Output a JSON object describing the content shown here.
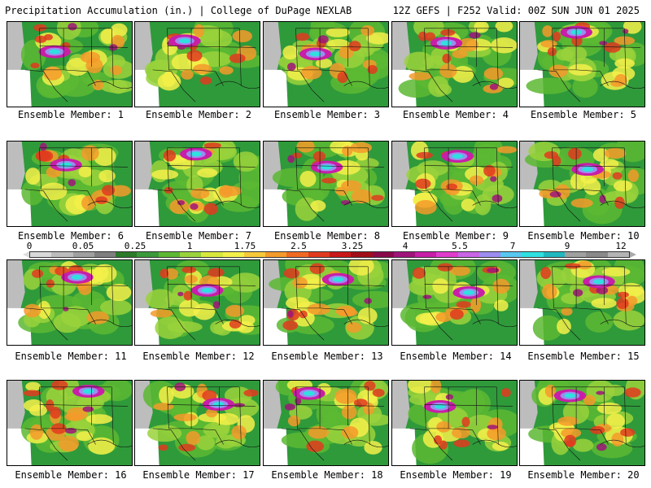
{
  "header": {
    "left_title": "Precipitation Accumulation (in.) | College of DuPage NEXLAB",
    "right_title": "12Z GEFS | F252 Valid: 00Z SUN JUN 01 2025"
  },
  "panels": [
    {
      "label": "Ensemble Member: 1"
    },
    {
      "label": "Ensemble Member: 2"
    },
    {
      "label": "Ensemble Member: 3"
    },
    {
      "label": "Ensemble Member: 4"
    },
    {
      "label": "Ensemble Member: 5"
    },
    {
      "label": "Ensemble Member: 6"
    },
    {
      "label": "Ensemble Member: 7"
    },
    {
      "label": "Ensemble Member: 8"
    },
    {
      "label": "Ensemble Member: 9"
    },
    {
      "label": "Ensemble Member: 10"
    },
    {
      "label": "Ensemble Member: 11"
    },
    {
      "label": "Ensemble Member: 12"
    },
    {
      "label": "Ensemble Member: 13"
    },
    {
      "label": "Ensemble Member: 14"
    },
    {
      "label": "Ensemble Member: 15"
    },
    {
      "label": "Ensemble Member: 16"
    },
    {
      "label": "Ensemble Member: 17"
    },
    {
      "label": "Ensemble Member: 18"
    },
    {
      "label": "Ensemble Member: 19"
    },
    {
      "label": "Ensemble Member: 20"
    }
  ],
  "colorbar": {
    "ticks": [
      "0",
      "0.05",
      "0.25",
      "1",
      "1.75",
      "2.5",
      "3.25",
      "4",
      "5.5",
      "7",
      "9",
      "12"
    ],
    "colors": [
      "#d9d9d9",
      "#bdbdbd",
      "#a0a0a0",
      "#7f7f7f",
      "#2a7a2a",
      "#3a9a3a",
      "#5cb832",
      "#9ad23c",
      "#d8e83c",
      "#f4f04a",
      "#f7c93a",
      "#f49a2a",
      "#f06a22",
      "#e23a1e",
      "#c81818",
      "#a00e1a",
      "#8a0a4a",
      "#a0147a",
      "#c81ea8",
      "#e03ccc",
      "#c864e6",
      "#9c8cf0",
      "#58c8f0",
      "#30e0e0",
      "#20b8c0",
      "#a0a0a0",
      "#8a8a8a",
      "#b4b4b4"
    ]
  }
}
